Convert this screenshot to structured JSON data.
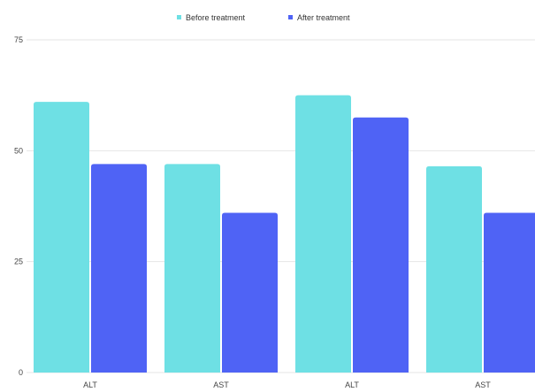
{
  "chart_data": {
    "type": "bar",
    "categories": [
      "ALT",
      "AST",
      "ALT",
      "AST"
    ],
    "series": [
      {
        "name": "Before treatment",
        "color": "#6ee0e4",
        "values": [
          61,
          47,
          62.5,
          46.5
        ]
      },
      {
        "name": "After treatment",
        "color": "#4f63f5",
        "values": [
          47,
          36,
          57.5,
          36
        ]
      }
    ],
    "ylim": [
      0,
      75
    ],
    "yticks": [
      "0",
      "25",
      "50",
      "75"
    ],
    "grid": true,
    "legend_position": "top-center",
    "title": "",
    "xlabel": "",
    "ylabel": ""
  }
}
